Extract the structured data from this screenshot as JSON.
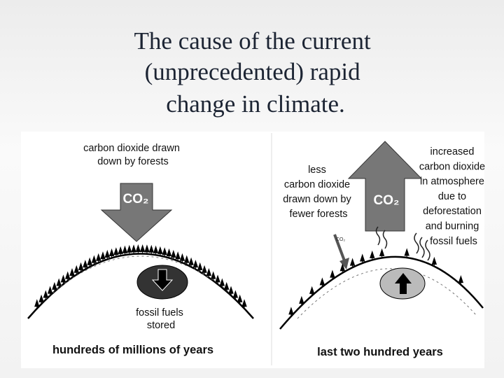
{
  "title": {
    "lines": [
      "The cause of the current",
      "(unprecedented) rapid",
      "change in climate."
    ]
  },
  "left_panel": {
    "top_label": [
      "carbon dioxide drawn",
      "down by forests"
    ],
    "arrow_label": "CO₂",
    "fossil_label": [
      "fossil fuels",
      "stored"
    ],
    "caption": "hundreds of millions of years"
  },
  "right_panel": {
    "left_label": [
      "less",
      "carbon dioxide",
      "drawn down by",
      "fewer forests"
    ],
    "arrow_label": "CO₂",
    "small_arrow_label": "CO₂",
    "right_label": [
      "increased",
      "carbon dioxide",
      "in atmosphere",
      "due to",
      "deforestation",
      "and burning",
      "fossil fuels"
    ],
    "caption": "last two hundred years"
  }
}
